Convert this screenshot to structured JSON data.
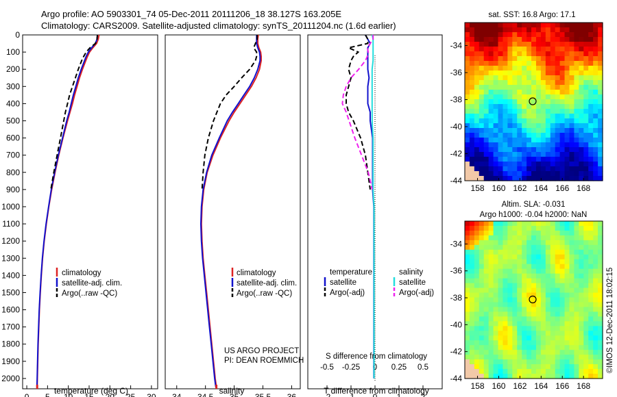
{
  "header": {
    "line1": "Argo profile: AO 5903301_74 05-Dec-2011 20111206_18 38.127S 163.205E",
    "line2": "Climatology: CARS2009. Satellite-adjusted climatology: synTS_20111204.nc (1.6d earlier)"
  },
  "credit": {
    "project": "US ARGO PROJECT",
    "pi": "PI: DEAN ROEMMICH",
    "watermark": "©IMOS 12-Dec-2011 18:02:15"
  },
  "colors": {
    "climatology": "#dd2222",
    "satellite": "#1111cc",
    "argo": "#000000",
    "sal_satellite": "#22dddd",
    "sal_argo": "#ee22ee"
  },
  "chart_data": [
    {
      "type": "line",
      "id": "temperature",
      "xlabel": "temperature (deg C)",
      "ylabel": "",
      "ylim": [
        0,
        2060
      ],
      "yticks": [
        0,
        100,
        200,
        300,
        400,
        500,
        600,
        700,
        800,
        900,
        1000,
        1100,
        1200,
        1300,
        1400,
        1500,
        1600,
        1700,
        1800,
        1900,
        2000
      ],
      "xlim": [
        -1,
        31.5
      ],
      "xticks": [
        0,
        5,
        10,
        15,
        20,
        25,
        30
      ],
      "legend": [
        "climatology",
        "satellite-adj. clim.",
        "Argo(..raw -QC)"
      ],
      "depth": [
        0,
        25,
        50,
        75,
        100,
        125,
        150,
        200,
        250,
        300,
        350,
        400,
        450,
        500,
        600,
        700,
        800,
        900,
        1000,
        1100,
        1200,
        1300,
        1400,
        1500,
        1600,
        1700,
        1800,
        1900,
        2000,
        2050
      ],
      "series": [
        {
          "name": "climatology",
          "style": "solid",
          "color": "#dd2222",
          "values": [
            17.4,
            17.2,
            16.8,
            15.9,
            15.1,
            14.6,
            14.2,
            13.4,
            12.7,
            12.1,
            11.5,
            11.0,
            10.4,
            9.8,
            8.7,
            7.7,
            6.8,
            6.0,
            5.3,
            4.7,
            4.2,
            3.8,
            3.5,
            3.25,
            3.05,
            2.9,
            2.75,
            2.65,
            2.55,
            2.5
          ]
        },
        {
          "name": "satellite-adj. clim.",
          "style": "solid",
          "color": "#1111cc",
          "values": [
            17.0,
            16.9,
            16.5,
            15.6,
            14.8,
            14.3,
            13.9,
            13.1,
            12.4,
            11.8,
            11.2,
            10.7,
            10.2,
            9.6,
            8.6,
            7.6,
            6.7,
            5.9,
            5.25,
            4.65,
            4.15,
            3.75,
            3.45,
            3.2,
            3.0,
            2.85,
            2.7,
            2.6,
            2.5,
            2.45
          ]
        },
        {
          "name": "Argo(..raw -QC)",
          "style": "dash",
          "color": "#000000",
          "values": [
            17.0,
            16.9,
            16.5,
            15.2,
            14.3,
            13.7,
            13.2,
            12.4,
            11.7,
            11.0,
            10.3,
            9.8,
            9.3,
            8.9,
            8.1,
            7.3,
            6.5,
            5.8,
            null,
            null,
            null,
            null,
            null,
            null,
            null,
            null,
            null,
            null,
            null,
            null
          ]
        }
      ]
    },
    {
      "type": "line",
      "id": "salinity",
      "xlabel": "salinity",
      "ylim": [
        0,
        2060
      ],
      "xlim": [
        33.8,
        36.15
      ],
      "xticks": [
        34,
        34.5,
        35,
        35.5,
        36
      ],
      "xticklabels": [
        "34",
        "34.5",
        "35",
        "35.5",
        "36"
      ],
      "legend": [
        "climatology",
        "satellite-adj. clim.",
        "Argo(..raw -QC)"
      ],
      "depth": [
        0,
        25,
        50,
        75,
        100,
        125,
        150,
        200,
        250,
        300,
        350,
        400,
        450,
        500,
        600,
        700,
        800,
        900,
        1000,
        1100,
        1200,
        1300,
        1400,
        1500,
        1600,
        1700,
        1800,
        1900,
        2000,
        2050
      ],
      "series": [
        {
          "name": "climatology",
          "style": "solid",
          "color": "#dd2222",
          "values": [
            35.42,
            35.41,
            35.41,
            35.43,
            35.46,
            35.47,
            35.47,
            35.44,
            35.38,
            35.3,
            35.2,
            35.1,
            35.0,
            34.91,
            34.76,
            34.63,
            34.53,
            34.47,
            34.44,
            34.43,
            34.44,
            34.46,
            34.49,
            34.52,
            34.55,
            34.58,
            34.61,
            34.64,
            34.67,
            34.69
          ]
        },
        {
          "name": "satellite-adj. clim.",
          "style": "solid",
          "color": "#1111cc",
          "values": [
            35.39,
            35.39,
            35.39,
            35.41,
            35.44,
            35.45,
            35.45,
            35.41,
            35.35,
            35.27,
            35.17,
            35.07,
            34.97,
            34.88,
            34.74,
            34.61,
            34.52,
            34.46,
            34.43,
            34.42,
            34.43,
            34.45,
            34.48,
            34.51,
            34.54,
            34.57,
            34.6,
            34.63,
            34.66,
            34.68
          ]
        },
        {
          "name": "Argo(..raw -QC)",
          "style": "dash",
          "color": "#000000",
          "values": [
            35.4,
            35.4,
            35.37,
            35.34,
            35.39,
            35.39,
            35.37,
            35.27,
            35.13,
            35.0,
            34.86,
            34.76,
            34.7,
            34.64,
            34.55,
            34.49,
            34.46,
            34.44,
            null,
            null,
            null,
            null,
            null,
            null,
            null,
            null,
            null,
            null,
            null,
            null
          ]
        }
      ]
    },
    {
      "type": "line",
      "id": "difference",
      "xlabel": "T difference from climatology",
      "xlabel_top": "S difference from climatology",
      "ylim": [
        0,
        2060
      ],
      "xlim": [
        -2.8,
        2.8
      ],
      "xticks": [
        -2,
        -1,
        0,
        1,
        2
      ],
      "sticks": [
        -0.5,
        -0.25,
        0,
        0.25,
        0.5
      ],
      "sticklabels": [
        "-0.5",
        "-0.25",
        "0",
        "0.25",
        "0.5"
      ],
      "legend_headers": [
        "temperature",
        "salinity"
      ],
      "legend": [
        "satellite",
        "Argo(-adj)",
        "satellite",
        "Argo(-adj)"
      ],
      "depth": [
        0,
        25,
        50,
        75,
        100,
        125,
        150,
        200,
        250,
        300,
        350,
        400,
        450,
        500,
        600,
        700,
        800,
        900,
        1000,
        1100,
        1200,
        1300,
        1400,
        1500,
        1600,
        1700,
        1800,
        1900,
        2000
      ],
      "series": [
        {
          "name": "satellite",
          "group": "temperature",
          "style": "solid",
          "color": "#1111cc",
          "values": [
            -0.4,
            -0.3,
            -0.2,
            -0.3,
            -0.3,
            -0.3,
            -0.3,
            -0.3,
            -0.25,
            -0.3,
            -0.3,
            -0.3,
            -0.2,
            -0.2,
            -0.1,
            -0.1,
            -0.1,
            -0.1,
            -0.05,
            -0.05,
            -0.05,
            -0.05,
            -0.05,
            -0.05,
            -0.05,
            -0.05,
            -0.05,
            -0.05,
            -0.05
          ]
        },
        {
          "name": "Argo(-adj)",
          "group": "temperature",
          "style": "dash",
          "color": "#000000",
          "values": [
            -0.4,
            -0.3,
            -0.3,
            -1.1,
            -0.7,
            -0.9,
            -1.0,
            -1.1,
            -1.0,
            -1.1,
            -1.2,
            -1.2,
            -1.1,
            -0.9,
            -0.6,
            -0.4,
            -0.3,
            -0.2,
            null,
            null,
            null,
            null,
            null,
            null,
            null,
            null,
            null,
            null,
            null
          ]
        },
        {
          "name": "satellite",
          "group": "salinity",
          "style": "solid",
          "color": "#22dddd",
          "values": [
            -0.03,
            -0.02,
            -0.02,
            -0.02,
            -0.02,
            -0.02,
            -0.02,
            -0.03,
            -0.03,
            -0.03,
            -0.03,
            -0.03,
            -0.03,
            -0.03,
            -0.02,
            -0.02,
            -0.02,
            -0.02,
            -0.01,
            -0.01,
            -0.01,
            -0.01,
            -0.01,
            -0.01,
            -0.01,
            -0.01,
            -0.01,
            -0.01,
            -0.01
          ]
        },
        {
          "name": "Argo(-adj)",
          "group": "salinity",
          "style": "dash",
          "color": "#ee22ee",
          "values": [
            -0.02,
            -0.02,
            -0.05,
            -0.08,
            -0.07,
            -0.08,
            -0.1,
            -0.17,
            -0.25,
            -0.3,
            -0.33,
            -0.34,
            -0.3,
            -0.27,
            -0.21,
            -0.14,
            -0.07,
            -0.03,
            null,
            null,
            null,
            null,
            null,
            null,
            null,
            null,
            null,
            null,
            null
          ]
        }
      ]
    },
    {
      "type": "heatmap",
      "id": "sst_map",
      "title": "sat. SST: 16.8 Argo: 17.1",
      "xlim": [
        156.8,
        169.8
      ],
      "ylim": [
        -44,
        -32.3
      ],
      "xticks": [
        158,
        160,
        162,
        164,
        166,
        168
      ],
      "yticks": [
        -34,
        -36,
        -38,
        -40,
        -42,
        -44
      ],
      "marker": {
        "lon": 163.205,
        "lat": -38.127
      }
    },
    {
      "type": "heatmap",
      "id": "sla_map",
      "title": "Altim. SLA: -0.031",
      "subtitle": "Argo h1000: -0.04 h2000: NaN",
      "xlim": [
        156.8,
        169.8
      ],
      "ylim": [
        -44,
        -32.3
      ],
      "xticks": [
        158,
        160,
        162,
        164,
        166,
        168
      ],
      "yticks": [
        -34,
        -36,
        -38,
        -40,
        -42,
        -44
      ],
      "marker": {
        "lon": 163.205,
        "lat": -38.127
      }
    }
  ]
}
